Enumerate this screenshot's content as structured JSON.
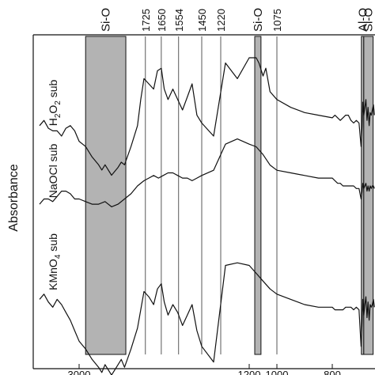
{
  "chart_data": {
    "type": "line",
    "ylabel": "Absorbance",
    "xlim": [
      3900,
      0
    ],
    "xaxis_reversed": true,
    "x_tick_labels": [
      "3000",
      "1200",
      "1000",
      "800"
    ],
    "x_tick_values": [
      3000,
      1200,
      1000,
      800
    ],
    "grid": false,
    "legend": "none",
    "shaded_regions": [
      {
        "label": "Si-O",
        "from": 2900,
        "to": 2280
      },
      {
        "label": "Si-O",
        "from": 1160,
        "to": 1115
      },
      {
        "label": "Al-O",
        "from": 255,
        "to": 210
      },
      {
        "label": "Si-O",
        "from": 210,
        "to": 35
      }
    ],
    "peak_lines": [
      {
        "label": "1725",
        "x": 1985
      },
      {
        "label": "1650",
        "x": 1820
      },
      {
        "label": "1554",
        "x": 1640
      },
      {
        "label": "1450",
        "x": 1400
      },
      {
        "label": "1220",
        "x": 1320
      },
      {
        "label": "1075",
        "x": 1000
      }
    ],
    "series": [
      {
        "name": "H2O2 sub",
        "x": [
          3900,
          3800,
          3700,
          3600,
          3500,
          3400,
          3300,
          3200,
          3100,
          3000,
          2900,
          2800,
          2700,
          2650,
          2600,
          2500,
          2400,
          2350,
          2300,
          2200,
          2100,
          2050,
          2000,
          1950,
          1900,
          1860,
          1820,
          1790,
          1750,
          1700,
          1650,
          1600,
          1550,
          1500,
          1450,
          1400,
          1350,
          1300,
          1250,
          1200,
          1150,
          1130,
          1100,
          1080,
          1050,
          1000,
          950,
          900,
          850,
          800,
          750,
          700,
          650,
          600,
          550,
          500,
          450,
          400,
          350,
          300,
          260,
          240,
          230,
          210,
          190,
          170,
          150,
          130,
          110,
          90,
          70,
          50,
          30,
          10
        ],
        "y": [
          0.14,
          0.16,
          0.13,
          0.12,
          0.12,
          0.1,
          0.13,
          0.14,
          0.12,
          0.08,
          0.06,
          0.02,
          -0.01,
          -0.03,
          -0.01,
          -0.05,
          -0.02,
          0.0,
          -0.01,
          0.06,
          0.14,
          0.24,
          0.32,
          0.3,
          0.28,
          0.35,
          0.36,
          0.28,
          0.24,
          0.28,
          0.24,
          0.2,
          0.25,
          0.3,
          0.18,
          0.15,
          0.1,
          0.38,
          0.32,
          0.4,
          0.4,
          0.38,
          0.33,
          0.36,
          0.27,
          0.24,
          0.21,
          0.19,
          0.18,
          0.17,
          0.18,
          0.17,
          0.16,
          0.17,
          0.18,
          0.18,
          0.16,
          0.15,
          0.16,
          0.15,
          0.06,
          0.14,
          0.23,
          0.18,
          0.21,
          0.24,
          0.16,
          0.21,
          0.14,
          0.19,
          0.18,
          0.2,
          0.22,
          0.18
        ]
      },
      {
        "name": "NaOCl sub",
        "x": [
          3900,
          3800,
          3700,
          3600,
          3500,
          3400,
          3300,
          3200,
          3100,
          3000,
          2900,
          2800,
          2700,
          2600,
          2500,
          2400,
          2300,
          2200,
          2100,
          2000,
          1950,
          1900,
          1850,
          1800,
          1750,
          1700,
          1650,
          1600,
          1550,
          1500,
          1450,
          1400,
          1350,
          1300,
          1250,
          1200,
          1150,
          1100,
          1050,
          1000,
          950,
          900,
          850,
          800,
          750,
          700,
          650,
          600,
          550,
          500,
          450,
          400,
          350,
          300,
          260,
          240,
          230,
          210,
          190,
          170,
          150,
          130,
          110,
          90,
          70,
          50,
          30,
          10
        ],
        "y": [
          0.03,
          0.05,
          0.05,
          0.04,
          0.06,
          0.08,
          0.08,
          0.07,
          0.05,
          0.05,
          0.04,
          0.03,
          0.03,
          0.04,
          0.02,
          0.03,
          0.05,
          0.07,
          0.1,
          0.12,
          0.13,
          0.14,
          0.13,
          0.14,
          0.15,
          0.15,
          0.14,
          0.13,
          0.13,
          0.12,
          0.13,
          0.14,
          0.16,
          0.26,
          0.28,
          0.26,
          0.25,
          0.22,
          0.18,
          0.16,
          0.15,
          0.14,
          0.13,
          0.13,
          0.12,
          0.11,
          0.11,
          0.1,
          0.1,
          0.1,
          0.1,
          0.1,
          0.09,
          0.09,
          0.05,
          0.08,
          0.11,
          0.09,
          0.1,
          0.11,
          0.08,
          0.1,
          0.08,
          0.1,
          0.09,
          0.1,
          0.1,
          0.09
        ]
      },
      {
        "name": "KMnO4 sub",
        "x": [
          3900,
          3800,
          3700,
          3600,
          3500,
          3400,
          3300,
          3200,
          3100,
          3000,
          2900,
          2800,
          2700,
          2650,
          2600,
          2500,
          2400,
          2350,
          2300,
          2200,
          2100,
          2050,
          2000,
          1950,
          1900,
          1860,
          1820,
          1790,
          1750,
          1700,
          1650,
          1600,
          1550,
          1500,
          1450,
          1400,
          1350,
          1300,
          1250,
          1200,
          1150,
          1100,
          1050,
          1000,
          950,
          900,
          850,
          800,
          750,
          700,
          650,
          600,
          550,
          500,
          450,
          400,
          350,
          300,
          260,
          240,
          230,
          210,
          190,
          170,
          150,
          130,
          110,
          90,
          70,
          50,
          30,
          10
        ],
        "y": [
          0.02,
          0.04,
          0.01,
          -0.01,
          0.02,
          0.0,
          -0.03,
          -0.06,
          -0.1,
          -0.14,
          -0.17,
          -0.21,
          -0.24,
          -0.26,
          -0.23,
          -0.27,
          -0.23,
          -0.21,
          -0.24,
          -0.17,
          -0.09,
          -0.02,
          0.05,
          0.03,
          0.0,
          0.06,
          0.08,
          0.01,
          -0.04,
          0.0,
          -0.03,
          -0.08,
          -0.04,
          0.0,
          -0.1,
          -0.16,
          -0.22,
          0.15,
          0.16,
          0.15,
          0.12,
          0.09,
          0.06,
          0.04,
          0.02,
          0.0,
          -0.01,
          -0.01,
          -0.02,
          -0.02,
          -0.02,
          -0.02,
          -0.01,
          -0.01,
          -0.01,
          -0.02,
          -0.01,
          -0.02,
          -0.16,
          -0.06,
          0.02,
          -0.04,
          0.0,
          0.03,
          -0.05,
          0.01,
          -0.06,
          0.0,
          -0.01,
          0.0,
          0.02,
          -0.01
        ]
      }
    ]
  },
  "labels": {
    "h2o2_prefix": "H",
    "h2o2_sub1": "2",
    "h2o2_mid": "O",
    "h2o2_sub2": "2",
    "h2o2_suffix": " sub",
    "naocl": "NaOCl sub",
    "kmno4_prefix": "KMnO",
    "kmno4_sub": "4",
    "kmno4_suffix": " sub"
  },
  "colors": {
    "trace": "#111111",
    "shade": "#b3b3b3",
    "axis": "#111111"
  }
}
